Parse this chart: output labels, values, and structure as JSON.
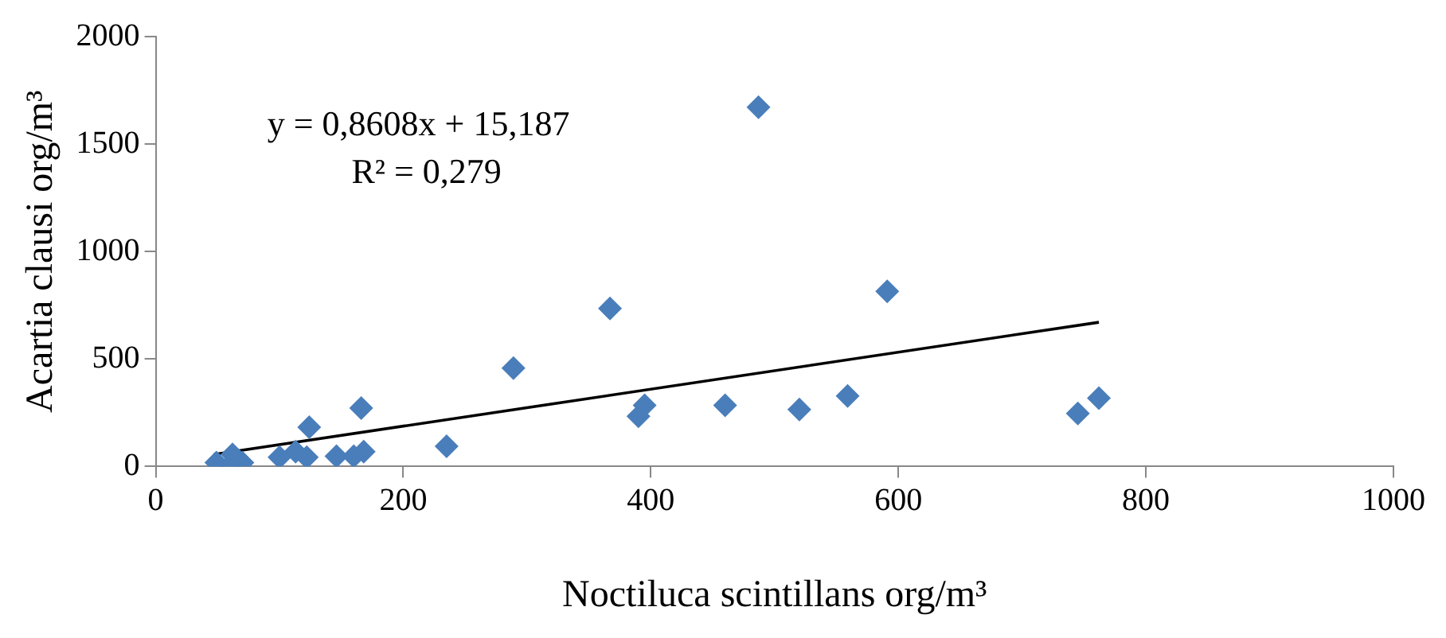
{
  "chart_data": {
    "type": "scatter",
    "xlabel": "Noctiluca scintillans org/m³",
    "ylabel": "Acartia clausi org/m³",
    "x": [
      49,
      62,
      70,
      60,
      100,
      113,
      122,
      124,
      146,
      160,
      168,
      166,
      235,
      289,
      367,
      395,
      390,
      460,
      520,
      559,
      591,
      487,
      745,
      762
    ],
    "series": [
      {
        "type": "scatter",
        "color": "#4a7ebb",
        "marker": "diamond",
        "values": [
          18,
          56,
          18,
          5,
          43,
          69,
          43,
          183,
          48,
          48,
          69,
          272,
          94,
          458,
          735,
          285,
          234,
          285,
          265,
          328,
          815,
          1672,
          247,
          318
        ]
      },
      {
        "type": "line",
        "color": "#000000",
        "x": [
          47,
          762
        ],
        "values": [
          56,
          671
        ]
      }
    ],
    "annotations": [
      "y = 0,8608x + 15,187",
      "R² = 0,279"
    ],
    "xlim": [
      0,
      1000
    ],
    "xticks": [
      0,
      200,
      400,
      600,
      800,
      1000
    ],
    "ylim": [
      0,
      2000
    ],
    "yticks": [
      0,
      500,
      1000,
      1500,
      2000
    ],
    "grid": false,
    "legend": false
  }
}
